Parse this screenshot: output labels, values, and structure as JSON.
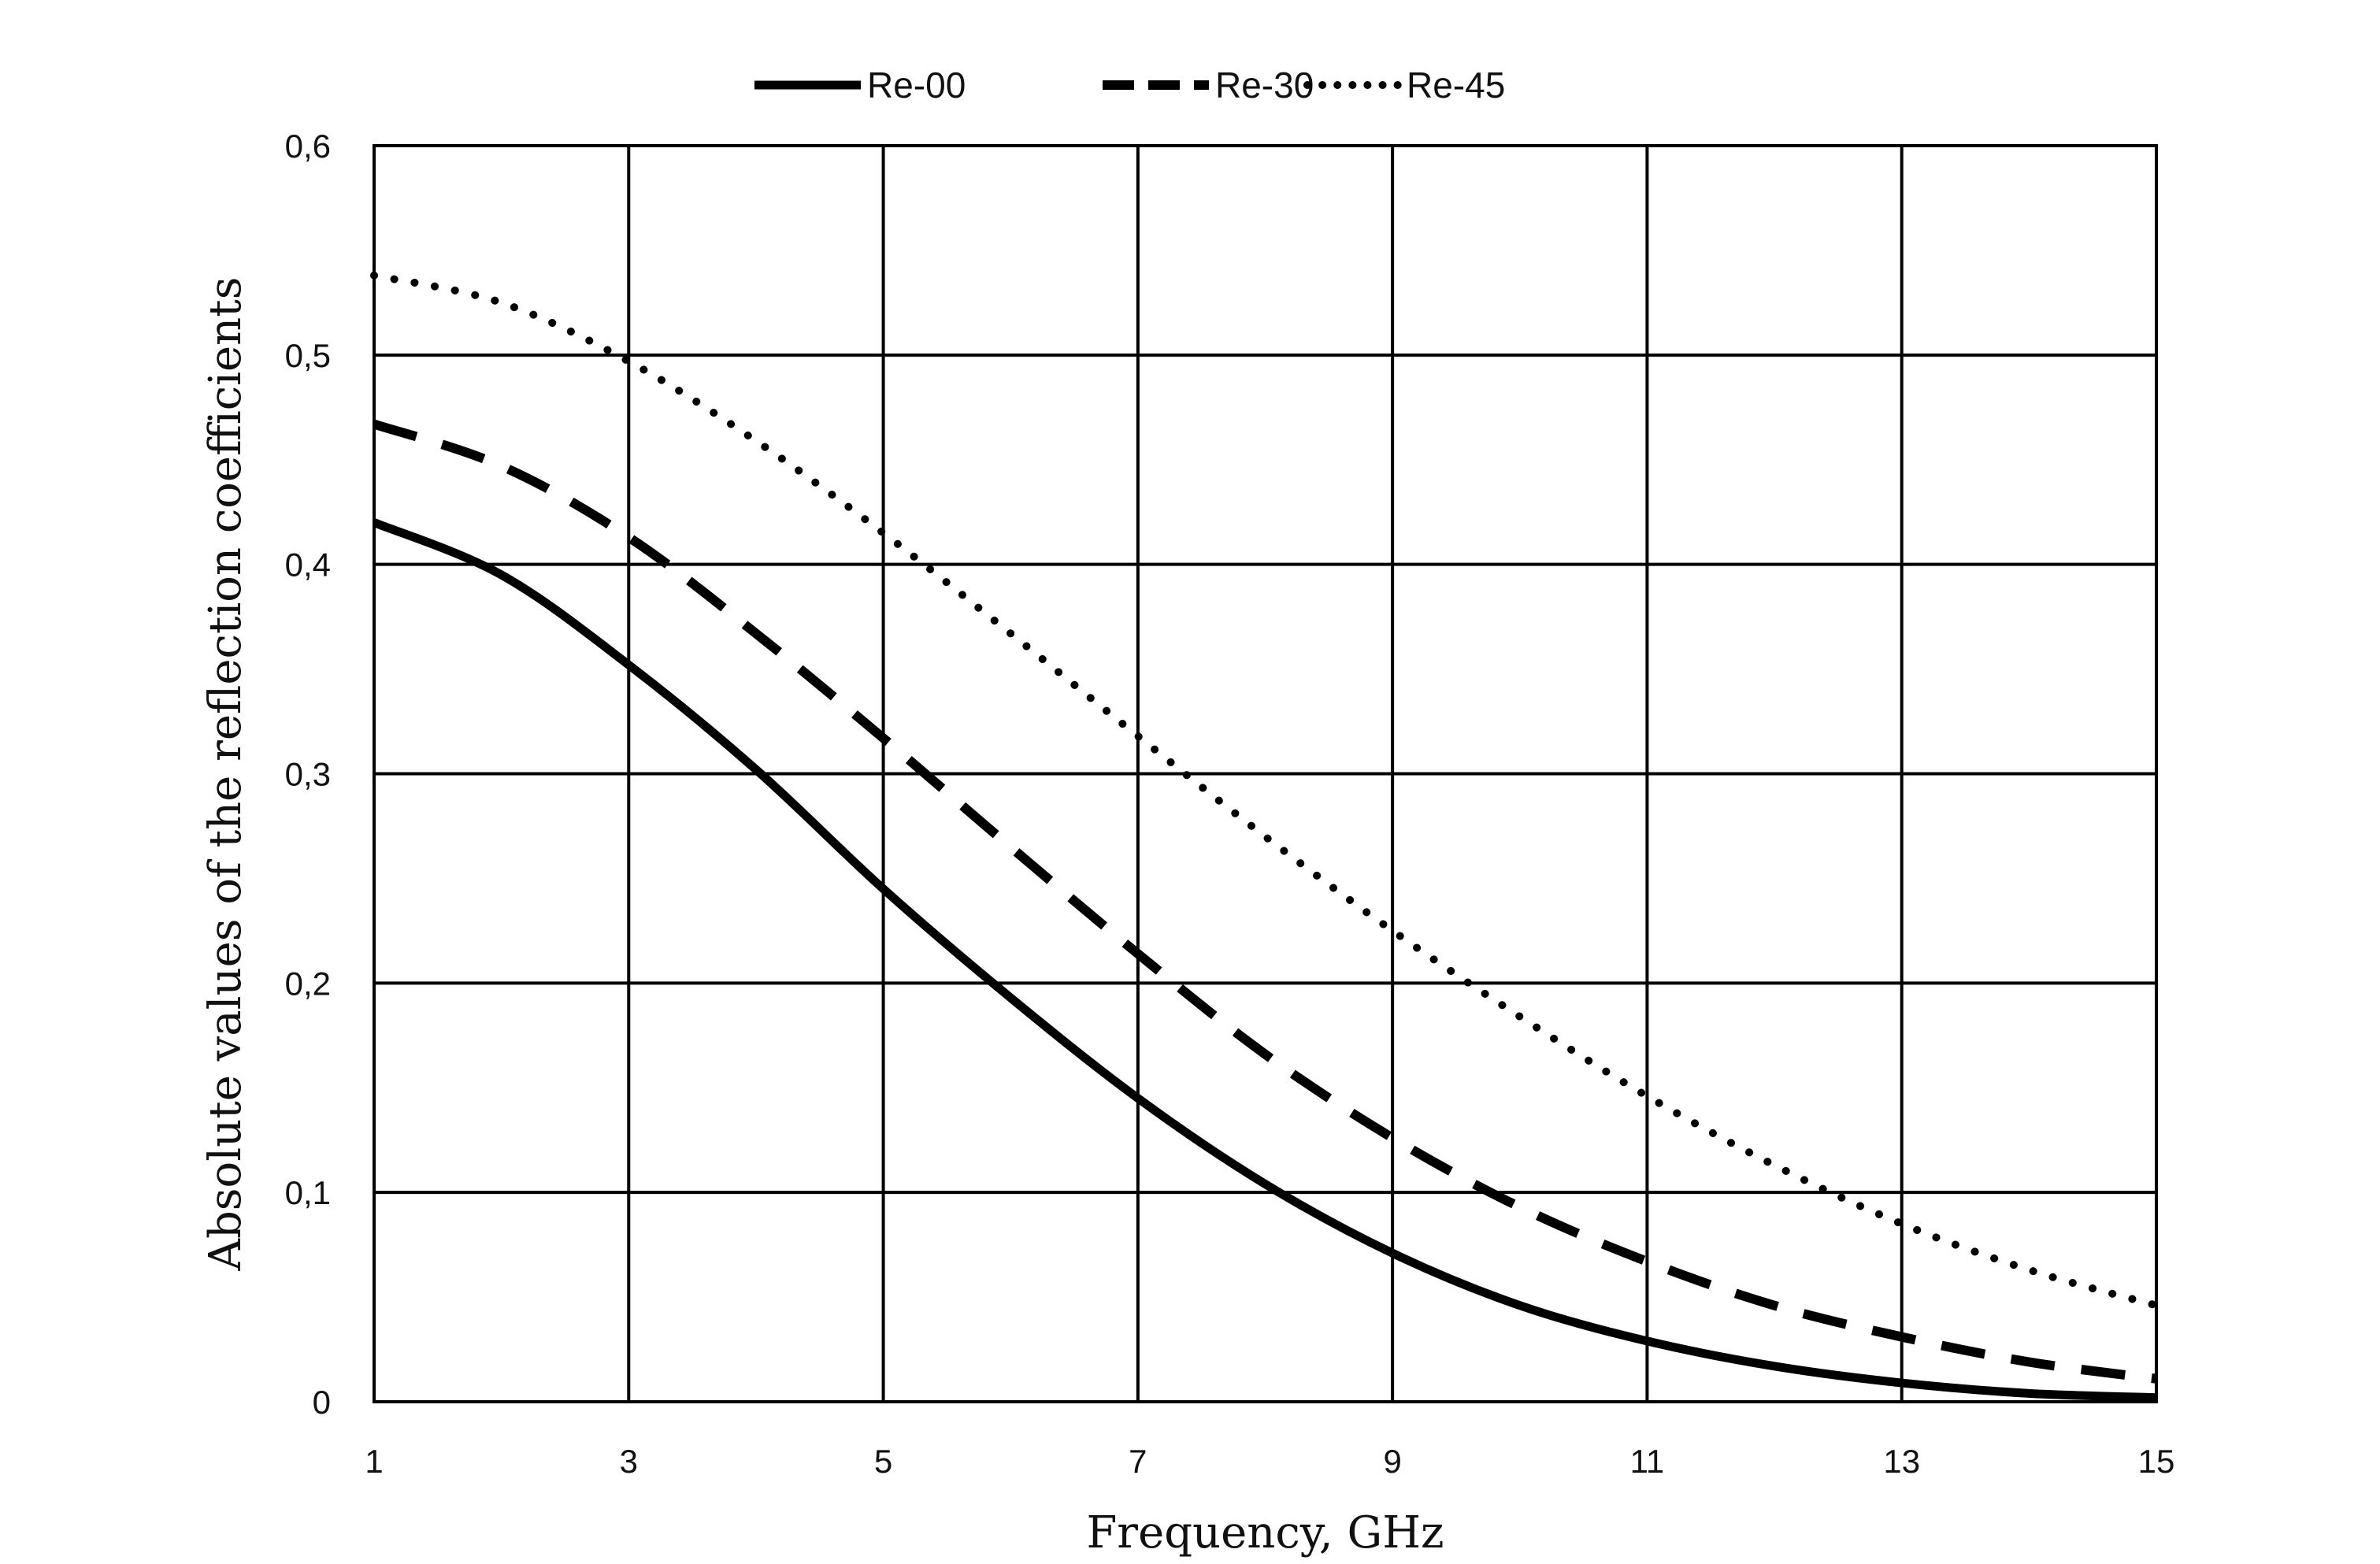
{
  "chart_data": {
    "type": "line",
    "xlabel": "Frequency, GHz",
    "ylabel": "Absolute values of the reflection coefficients",
    "xlim": [
      1,
      15
    ],
    "ylim": [
      0,
      0.6
    ],
    "x_ticks": [
      1,
      3,
      5,
      7,
      9,
      11,
      13,
      15
    ],
    "y_ticks": [
      0,
      0.1,
      0.2,
      0.3,
      0.4,
      0.5,
      0.6
    ],
    "x_tick_labels": [
      "1",
      "3",
      "5",
      "7",
      "9",
      "11",
      "13",
      "15"
    ],
    "y_tick_labels": [
      "0",
      "0,1",
      "0,2",
      "0,3",
      "0,4",
      "0,5",
      "0,6"
    ],
    "grid": true,
    "legend_position": "top-center",
    "x": [
      1,
      2,
      3,
      4,
      5,
      6,
      7,
      8,
      9,
      10,
      11,
      12,
      13,
      14,
      15
    ],
    "series": [
      {
        "name": "Re-00",
        "style": "solid",
        "color": "#000000",
        "values": [
          0.42,
          0.395,
          0.352,
          0.302,
          0.245,
          0.193,
          0.145,
          0.104,
          0.071,
          0.046,
          0.029,
          0.017,
          0.009,
          0.004,
          0.002
        ]
      },
      {
        "name": "Re-30",
        "style": "dashed",
        "color": "#000000",
        "values": [
          0.467,
          0.447,
          0.413,
          0.367,
          0.317,
          0.265,
          0.214,
          0.166,
          0.126,
          0.093,
          0.067,
          0.046,
          0.031,
          0.019,
          0.011
        ]
      },
      {
        "name": "Re-45",
        "style": "dotted",
        "color": "#000000",
        "values": [
          0.538,
          0.525,
          0.497,
          0.459,
          0.415,
          0.367,
          0.318,
          0.27,
          0.225,
          0.184,
          0.146,
          0.113,
          0.085,
          0.063,
          0.046
        ]
      }
    ]
  }
}
